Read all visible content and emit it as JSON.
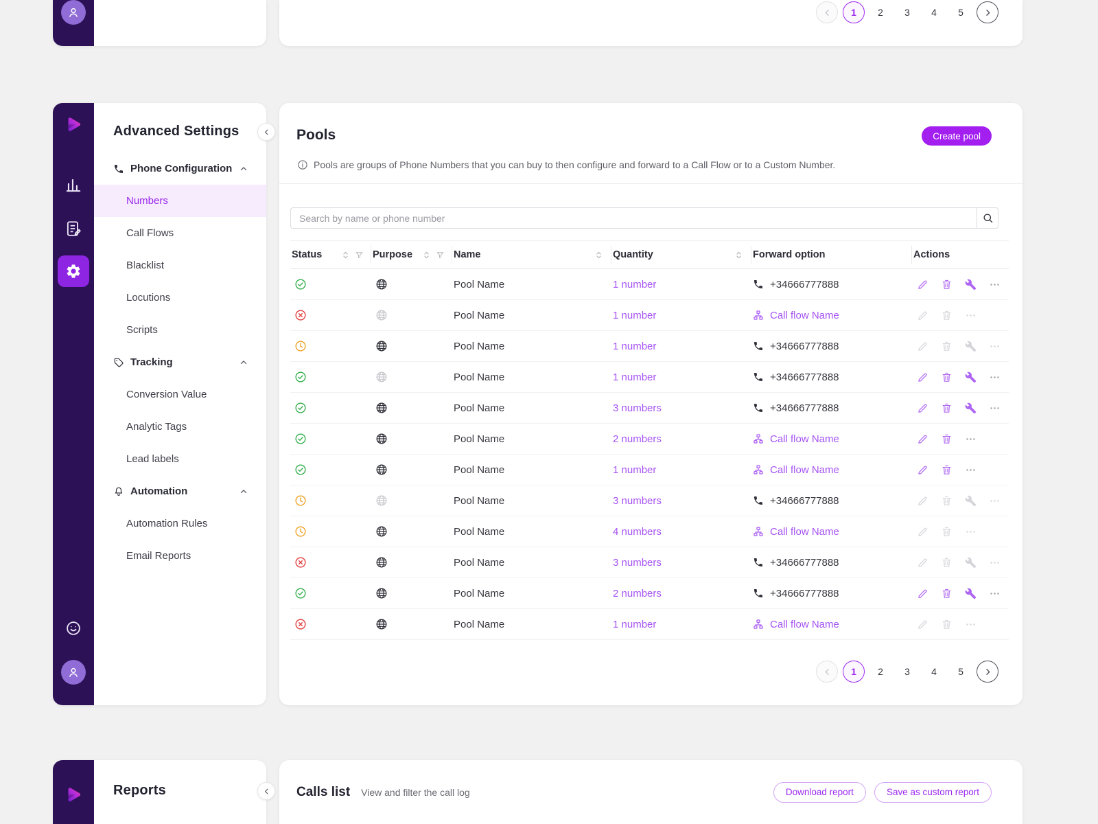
{
  "colors": {
    "rail_bg": "#2c1156",
    "accent": "#a21ff0",
    "link": "#a653f3",
    "active_item_bg": "#f6ecfe",
    "success": "#2fae4a",
    "danger": "#e23b3b",
    "warning": "#f0a020"
  },
  "top_section": {
    "pagination": {
      "pages": [
        "1",
        "2",
        "3",
        "4",
        "5"
      ],
      "active_index": 0,
      "prev_disabled": true
    }
  },
  "settings_sidebar": {
    "title": "Advanced Settings",
    "groups": [
      {
        "label": "Phone Configuration",
        "icon": "phone",
        "items": [
          {
            "label": "Numbers",
            "active": true
          },
          {
            "label": "Call Flows",
            "active": false
          },
          {
            "label": "Blacklist",
            "active": false
          },
          {
            "label": "Locutions",
            "active": false
          },
          {
            "label": "Scripts",
            "active": false
          }
        ]
      },
      {
        "label": "Tracking",
        "icon": "tag",
        "items": [
          {
            "label": "Conversion Value",
            "active": false
          },
          {
            "label": "Analytic Tags",
            "active": false
          },
          {
            "label": "Lead labels",
            "active": false
          }
        ]
      },
      {
        "label": "Automation",
        "icon": "bell",
        "items": [
          {
            "label": "Automation Rules",
            "active": false
          },
          {
            "label": "Email Reports",
            "active": false
          }
        ]
      }
    ]
  },
  "pools": {
    "title": "Pools",
    "create_button": "Create pool",
    "info": "Pools are groups of Phone Numbers that you can buy to then configure and forward to a Call Flow or to a Custom Number.",
    "search_placeholder": "Search by name or phone number",
    "columns": [
      {
        "label": "Status",
        "sort": true,
        "filter": true
      },
      {
        "label": "Purpose",
        "sort": true,
        "filter": true
      },
      {
        "label": "Name",
        "sort": true,
        "filter": false
      },
      {
        "label": "Quantity",
        "sort": true,
        "filter": false
      },
      {
        "label": "Forward option",
        "sort": false,
        "filter": false
      },
      {
        "label": "Actions",
        "sort": false,
        "filter": false
      }
    ],
    "rows": [
      {
        "status": "active",
        "purpose_muted": false,
        "name": "Pool Name",
        "quantity": "1 number",
        "forward_type": "phone",
        "forward": "+34666777888",
        "actions_enabled": true
      },
      {
        "status": "inactive",
        "purpose_muted": true,
        "name": "Pool Name",
        "quantity": "1 number",
        "forward_type": "callflow",
        "forward": "Call flow Name",
        "actions_enabled": false
      },
      {
        "status": "pending",
        "purpose_muted": false,
        "name": "Pool Name",
        "quantity": "1 number",
        "forward_type": "phone",
        "forward": "+34666777888",
        "actions_enabled": false
      },
      {
        "status": "active",
        "purpose_muted": true,
        "name": "Pool Name",
        "quantity": "1 number",
        "forward_type": "phone",
        "forward": "+34666777888",
        "actions_enabled": true
      },
      {
        "status": "active",
        "purpose_muted": false,
        "name": "Pool Name",
        "quantity": "3 numbers",
        "forward_type": "phone",
        "forward": "+34666777888",
        "actions_enabled": true
      },
      {
        "status": "active",
        "purpose_muted": false,
        "name": "Pool Name",
        "quantity": "2 numbers",
        "forward_type": "callflow",
        "forward": "Call flow Name",
        "actions_enabled": true
      },
      {
        "status": "active",
        "purpose_muted": false,
        "name": "Pool Name",
        "quantity": "1 number",
        "forward_type": "callflow",
        "forward": "Call flow Name",
        "actions_enabled": true
      },
      {
        "status": "pending",
        "purpose_muted": true,
        "name": "Pool Name",
        "quantity": "3 numbers",
        "forward_type": "phone",
        "forward": "+34666777888",
        "actions_enabled": false
      },
      {
        "status": "pending",
        "purpose_muted": false,
        "name": "Pool Name",
        "quantity": "4 numbers",
        "forward_type": "callflow",
        "forward": "Call flow Name",
        "actions_enabled": false
      },
      {
        "status": "inactive",
        "purpose_muted": false,
        "name": "Pool Name",
        "quantity": "3 numbers",
        "forward_type": "phone",
        "forward": "+34666777888",
        "actions_enabled": false
      },
      {
        "status": "active",
        "purpose_muted": false,
        "name": "Pool Name",
        "quantity": "2 numbers",
        "forward_type": "phone",
        "forward": "+34666777888",
        "actions_enabled": true
      },
      {
        "status": "inactive",
        "purpose_muted": false,
        "name": "Pool Name",
        "quantity": "1 number",
        "forward_type": "callflow",
        "forward": "Call flow Name",
        "actions_enabled": false
      }
    ],
    "pagination": {
      "pages": [
        "1",
        "2",
        "3",
        "4",
        "5"
      ],
      "active_index": 0,
      "prev_disabled": true
    }
  },
  "reports": {
    "title": "Reports",
    "calls_list": {
      "title": "Calls list",
      "subtitle": "View and filter the call log",
      "download_button": "Download report",
      "save_button": "Save as custom report"
    }
  }
}
